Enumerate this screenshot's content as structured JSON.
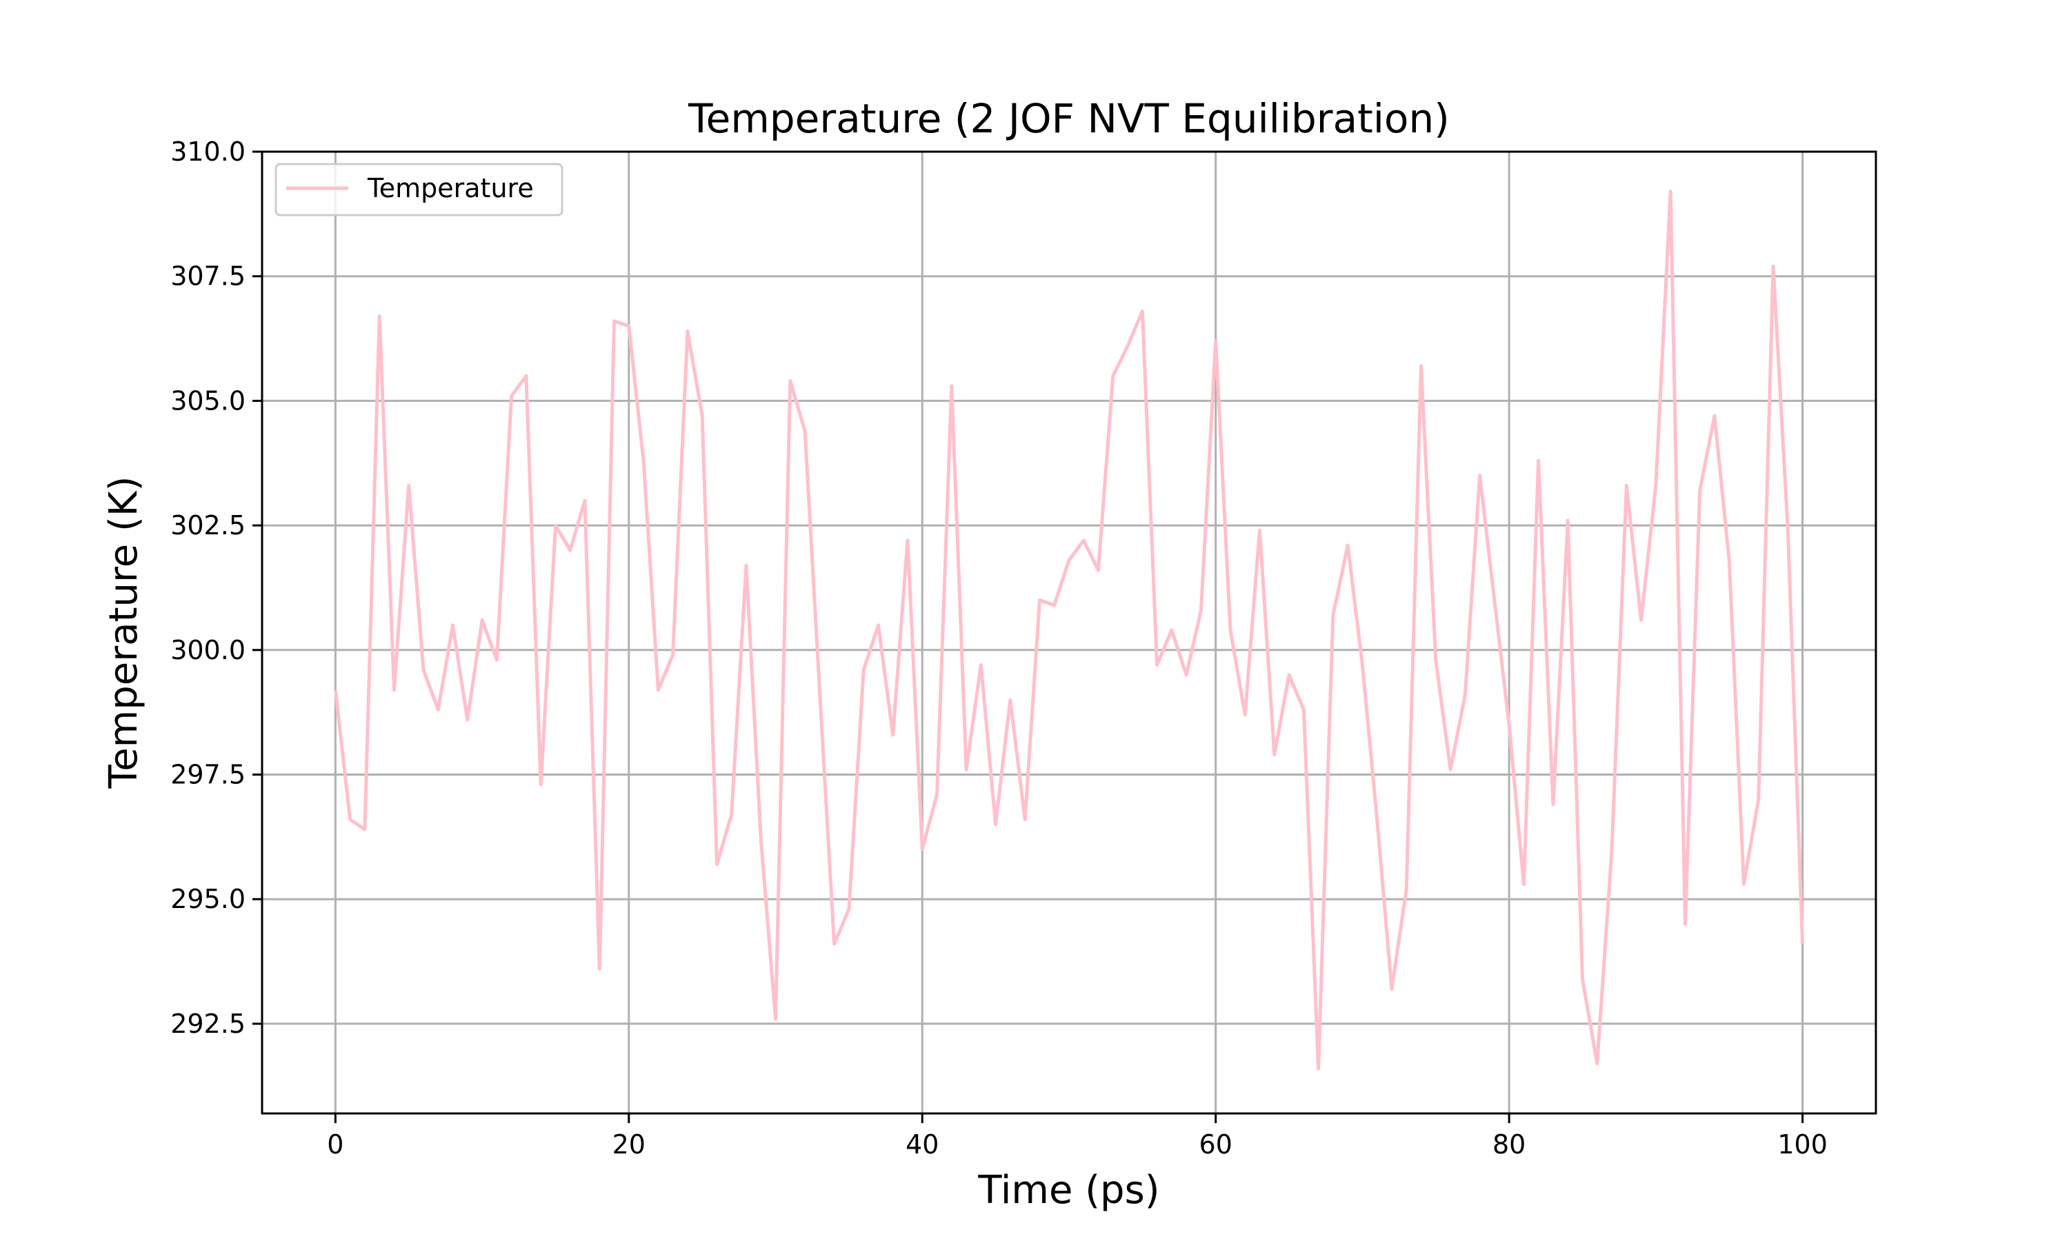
{
  "chart_data": {
    "type": "line",
    "title": "Temperature (2 JOF NVT Equilibration)",
    "xlabel": "Time (ps)",
    "ylabel": "Temperature (K)",
    "xlim": [
      -5,
      105
    ],
    "ylim": [
      290.7,
      310.0
    ],
    "xticks": [
      0,
      20,
      40,
      60,
      80,
      100
    ],
    "yticks": [
      292.5,
      295.0,
      297.5,
      300.0,
      302.5,
      305.0,
      307.5,
      310.0
    ],
    "xtick_labels": [
      "0",
      "20",
      "40",
      "60",
      "80",
      "100"
    ],
    "ytick_labels": [
      "292.5",
      "295.0",
      "297.5",
      "300.0",
      "302.5",
      "305.0",
      "307.5",
      "310.0"
    ],
    "grid": true,
    "legend_position": "top-left",
    "series": [
      {
        "name": "Temperature",
        "color": "#ffc0cb",
        "x": [
          0,
          1,
          2,
          3,
          4,
          5,
          6,
          7,
          8,
          9,
          10,
          11,
          12,
          13,
          14,
          15,
          16,
          17,
          18,
          19,
          20,
          21,
          22,
          23,
          24,
          25,
          26,
          27,
          28,
          29,
          30,
          31,
          32,
          33,
          34,
          35,
          36,
          37,
          38,
          39,
          40,
          41,
          42,
          43,
          44,
          45,
          46,
          47,
          48,
          49,
          50,
          51,
          52,
          53,
          54,
          55,
          56,
          57,
          58,
          59,
          60,
          61,
          62,
          63,
          64,
          65,
          66,
          67,
          68,
          69,
          70,
          71,
          72,
          73,
          74,
          75,
          76,
          77,
          78,
          79,
          80,
          81,
          82,
          83,
          84,
          85,
          86,
          87,
          88,
          89,
          90,
          91,
          92,
          93,
          94,
          95,
          96,
          97,
          98,
          99,
          100
        ],
        "values": [
          299.2,
          296.6,
          296.4,
          306.7,
          299.2,
          303.3,
          299.6,
          298.8,
          300.5,
          298.6,
          300.6,
          299.8,
          305.1,
          305.5,
          297.3,
          302.5,
          302.0,
          303.0,
          293.6,
          306.6,
          306.5,
          303.8,
          299.2,
          299.9,
          306.4,
          304.7,
          295.7,
          296.7,
          301.7,
          296.2,
          292.6,
          305.4,
          304.4,
          299.2,
          294.1,
          294.8,
          299.6,
          300.5,
          298.3,
          302.2,
          296.0,
          297.1,
          305.3,
          297.6,
          299.7,
          296.5,
          299.0,
          296.6,
          301.0,
          300.9,
          301.8,
          302.2,
          301.6,
          305.5,
          306.1,
          306.8,
          299.7,
          300.4,
          299.5,
          300.8,
          306.2,
          300.4,
          298.7,
          302.4,
          297.9,
          299.5,
          298.8,
          291.6,
          300.7,
          302.1,
          299.7,
          296.6,
          293.2,
          295.2,
          305.7,
          299.8,
          297.6,
          299.1,
          303.5,
          301.0,
          298.5,
          295.3,
          303.8,
          296.9,
          302.6,
          293.4,
          291.7,
          296.0,
          303.3,
          300.6,
          303.3,
          309.2,
          294.5,
          303.2,
          304.7,
          301.8,
          295.3,
          297.0,
          307.7,
          302.4,
          294.1
        ]
      }
    ]
  }
}
